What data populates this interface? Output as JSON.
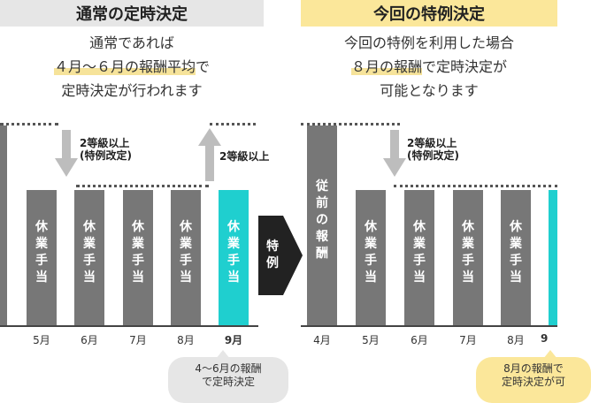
{
  "colors": {
    "bar": "#777777",
    "bar_highlight": "#1fcfcf",
    "left_header_bg": "#e6e6e6",
    "right_header_bg": "#fbe79a",
    "highlight_bg": "#f6e39a",
    "arrow": "#222222"
  },
  "left": {
    "header": "通常の定時決定",
    "desc_line1": "通常であれば",
    "desc_line2_hl": "４月～６月の報酬平均",
    "desc_line2_rest": "で",
    "desc_line3": "定時決定が行われます",
    "arrow_down_label": "2等級以上\n(特例改定)",
    "arrow_up_label": "2等級以上",
    "bar_label": "休\n業\n手\n当",
    "months": [
      "5月",
      "6月",
      "7月",
      "8月",
      "9月"
    ],
    "bubble": "4～6月の報酬\nで定時決定"
  },
  "middle_arrow_label": "特\n例",
  "right": {
    "header": "今回の特例決定",
    "desc_line1": "今回の特例を利用した場合",
    "desc_line2_hl": "８月の報酬",
    "desc_line2_rest": "で定時決定が",
    "desc_line3": "可能となります",
    "arrow_down_label": "2等級以上\n(特例改定)",
    "first_bar_label": "従\n前\nの\n報\n酬",
    "bar_label": "休\n業\n手\n当",
    "months": [
      "4月",
      "5月",
      "6月",
      "7月",
      "8月",
      "9"
    ],
    "bubble": "8月の報酬で\n定時決定が可"
  }
}
